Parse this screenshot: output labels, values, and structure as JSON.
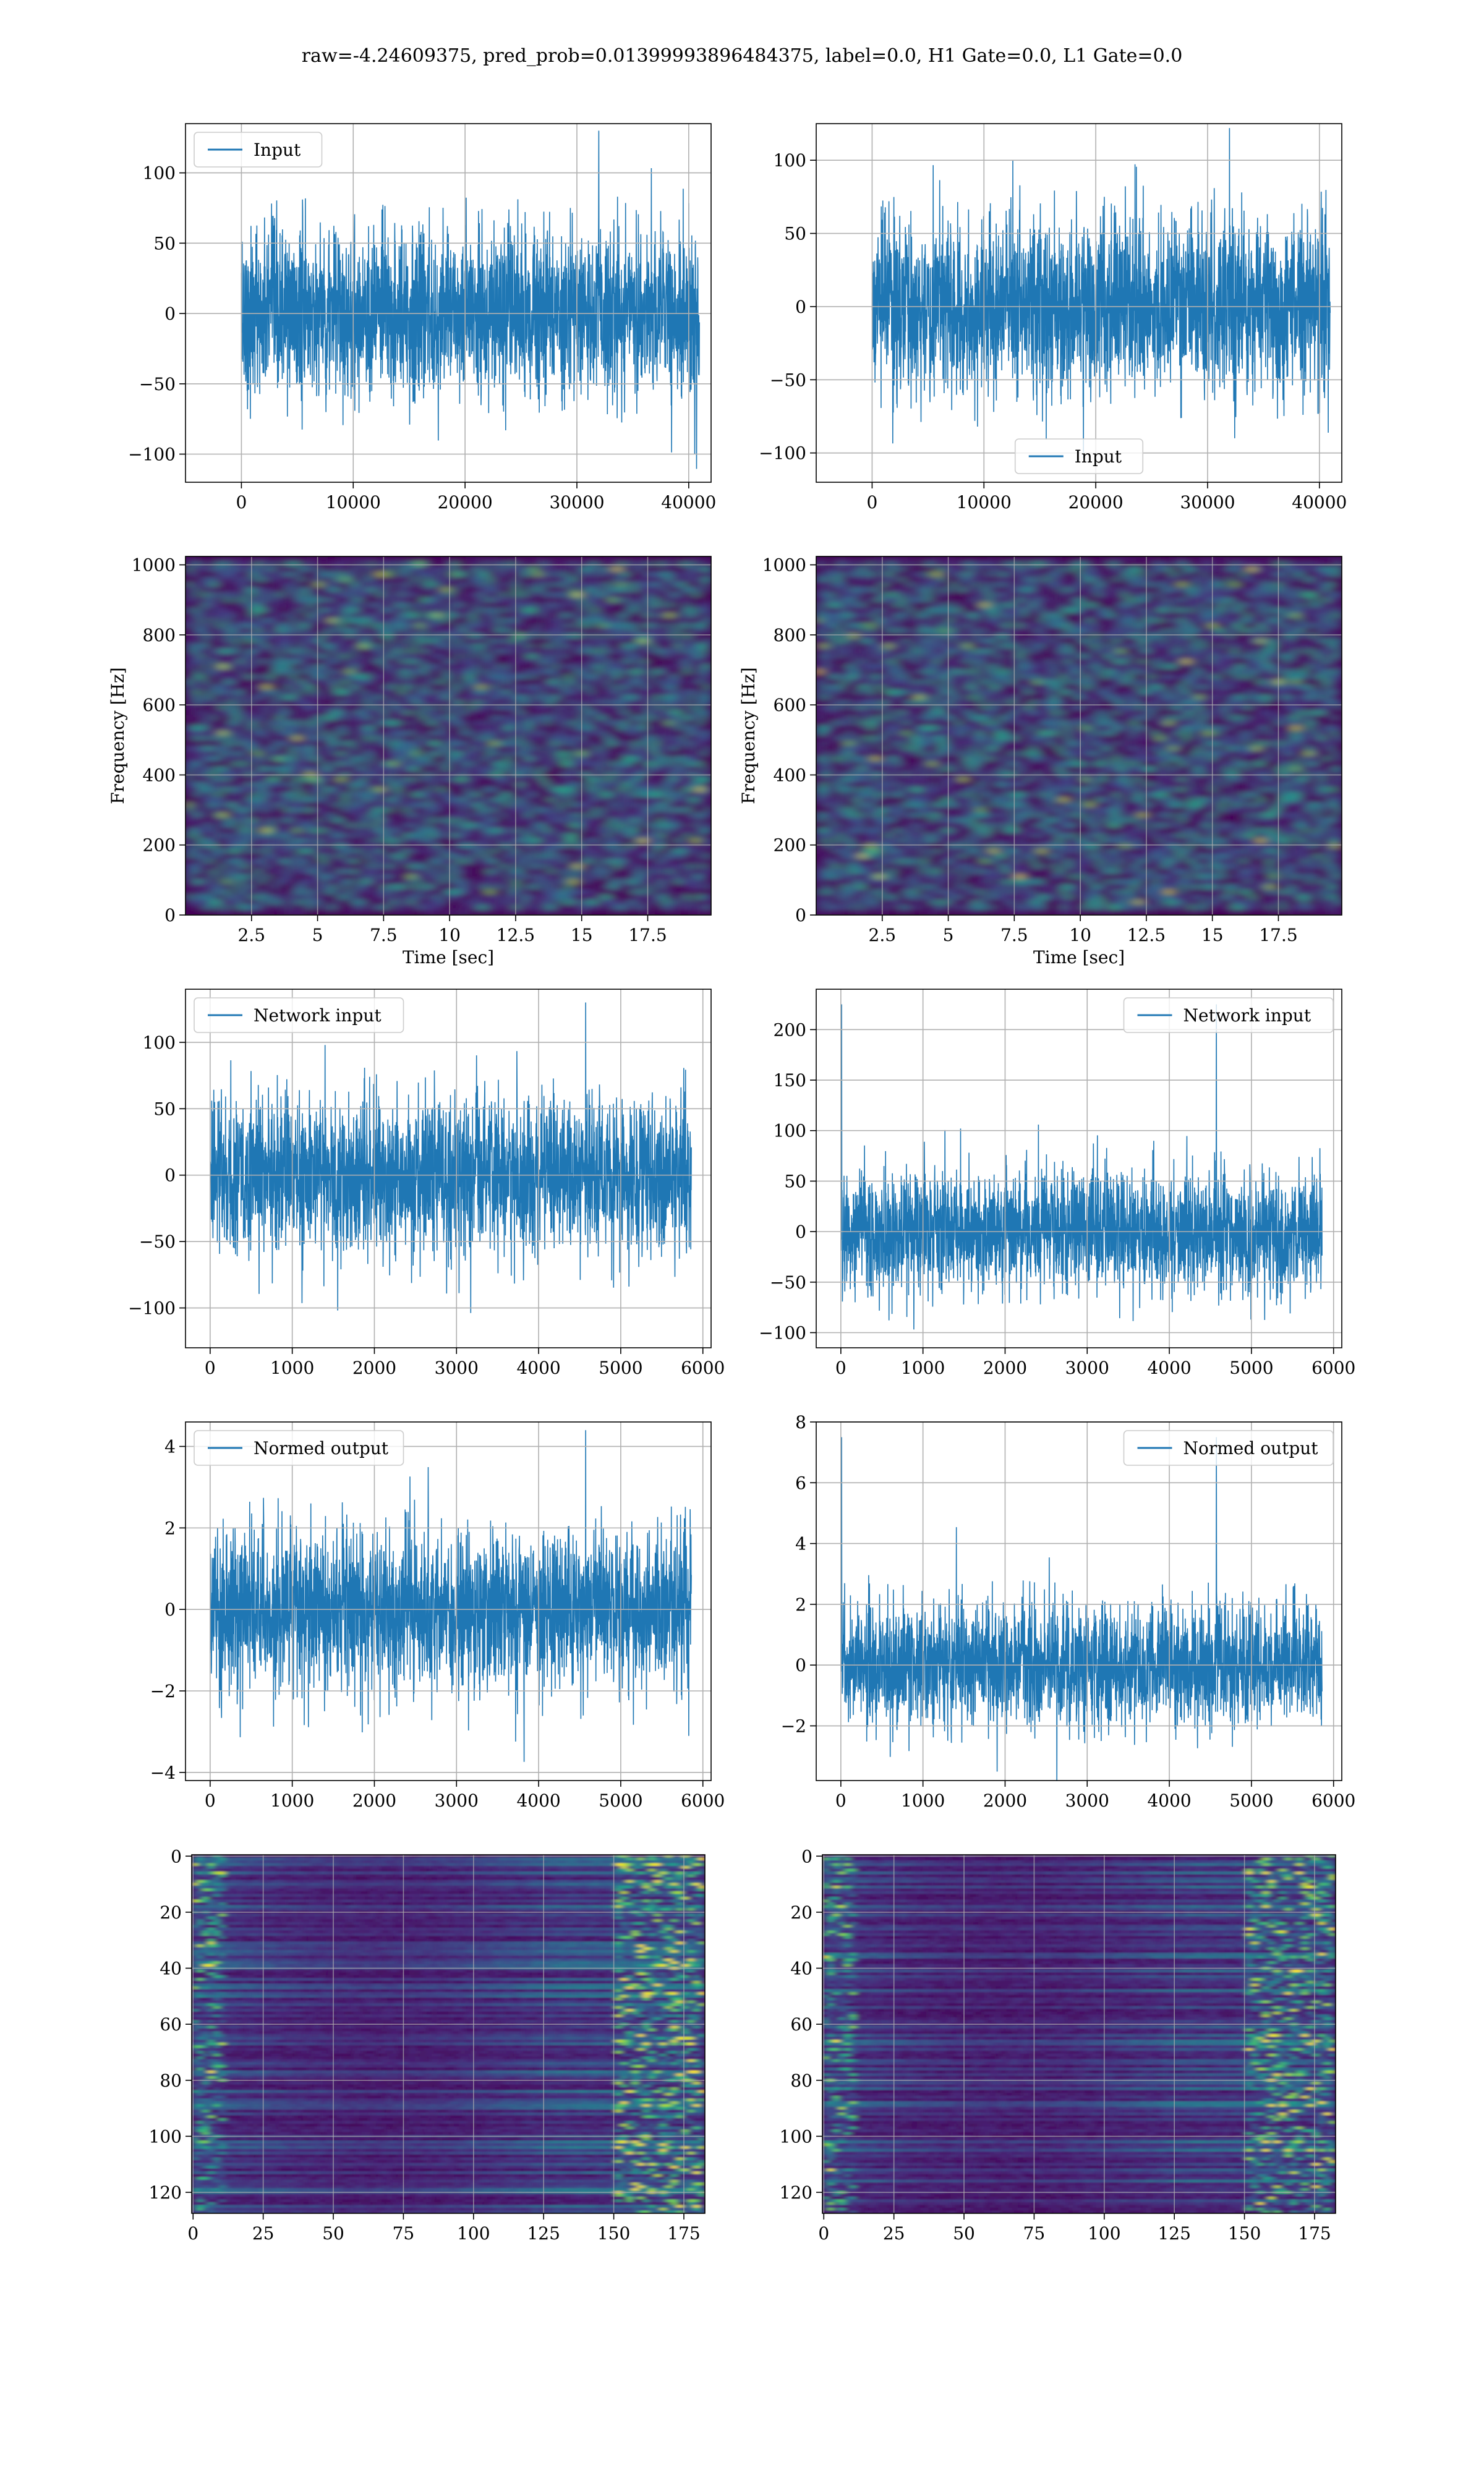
{
  "figure": {
    "title": "raw=-4.24609375, pred_prob=0.01399993896484375, label=0.0, H1 Gate=0.0, L1 Gate=0.0"
  },
  "colors": {
    "series": "#1f77b4",
    "grid": "#b0b0b0",
    "viridis": [
      "#440154",
      "#482878",
      "#3e4989",
      "#31688e",
      "#26828e",
      "#1f9e89",
      "#35b779",
      "#6ece58",
      "#b5de2b",
      "#fde725"
    ]
  },
  "chart_data": [
    {
      "id": "h1-input",
      "type": "line",
      "xlim": [
        -5000,
        42000
      ],
      "ylim": [
        -120,
        135
      ],
      "xticks": [
        0,
        10000,
        20000,
        30000,
        40000
      ],
      "yticks": [
        -100,
        -50,
        0,
        50,
        100
      ],
      "grid": true,
      "legend": "top-left",
      "series": [
        {
          "name": "Input",
          "x_range": [
            0,
            40959
          ],
          "n_points": 40960,
          "amplitude": 30,
          "peak": 130
        }
      ]
    },
    {
      "id": "l1-input",
      "type": "line",
      "xlim": [
        -5000,
        42000
      ],
      "ylim": [
        -120,
        125
      ],
      "xticks": [
        0,
        10000,
        20000,
        30000,
        40000
      ],
      "yticks": [
        -100,
        -50,
        0,
        50,
        100
      ],
      "grid": true,
      "legend": "bottom-center",
      "series": [
        {
          "name": "Input",
          "x_range": [
            0,
            40959
          ],
          "n_points": 40960,
          "amplitude": 30,
          "peak": 122
        }
      ]
    },
    {
      "id": "h1-spectrogram",
      "type": "heatmap",
      "xlim": [
        0,
        19.9
      ],
      "ylim": [
        0,
        1024
      ],
      "xticks": [
        2.5,
        5.0,
        7.5,
        10.0,
        12.5,
        15.0,
        17.5
      ],
      "yticks": [
        0,
        200,
        400,
        600,
        800,
        1000
      ],
      "xlabel": "Time [sec]",
      "ylabel": "Frequency [Hz]",
      "grid": true
    },
    {
      "id": "l1-spectrogram",
      "type": "heatmap",
      "xlim": [
        0,
        19.9
      ],
      "ylim": [
        0,
        1024
      ],
      "xticks": [
        2.5,
        5.0,
        7.5,
        10.0,
        12.5,
        15.0,
        17.5
      ],
      "yticks": [
        0,
        200,
        400,
        600,
        800,
        1000
      ],
      "xlabel": "Time [sec]",
      "ylabel": "Frequency [Hz]",
      "grid": true
    },
    {
      "id": "h1-network-input",
      "type": "line",
      "xlim": [
        -300,
        6100
      ],
      "ylim": [
        -130,
        140
      ],
      "xticks": [
        0,
        1000,
        2000,
        3000,
        4000,
        5000,
        6000
      ],
      "yticks": [
        -100,
        -50,
        0,
        50,
        100
      ],
      "grid": true,
      "legend": "top-left",
      "series": [
        {
          "name": "Network input",
          "x_range": [
            0,
            5860
          ],
          "n_points": 5861,
          "amplitude": 30,
          "peak": 130
        }
      ]
    },
    {
      "id": "l1-network-input",
      "type": "line",
      "xlim": [
        -300,
        6100
      ],
      "ylim": [
        -115,
        240
      ],
      "xticks": [
        0,
        1000,
        2000,
        3000,
        4000,
        5000,
        6000
      ],
      "yticks": [
        -100,
        -50,
        0,
        50,
        100,
        150,
        200
      ],
      "grid": true,
      "legend": "top-right",
      "series": [
        {
          "name": "Network input",
          "x_range": [
            0,
            5860
          ],
          "n_points": 5861,
          "amplitude": 30,
          "peak": 225
        }
      ]
    },
    {
      "id": "h1-normed-output",
      "type": "line",
      "xlim": [
        -300,
        6100
      ],
      "ylim": [
        -4.2,
        4.6
      ],
      "xticks": [
        0,
        1000,
        2000,
        3000,
        4000,
        5000,
        6000
      ],
      "yticks": [
        -4,
        -2,
        0,
        2,
        4
      ],
      "grid": true,
      "legend": "top-left",
      "series": [
        {
          "name": "Normed output",
          "x_range": [
            0,
            5860
          ],
          "n_points": 5861,
          "amplitude": 1,
          "peak": 4.4
        }
      ]
    },
    {
      "id": "l1-normed-output",
      "type": "line",
      "xlim": [
        -300,
        6100
      ],
      "ylim": [
        -3.8,
        8.0
      ],
      "xticks": [
        0,
        1000,
        2000,
        3000,
        4000,
        5000,
        6000
      ],
      "yticks": [
        -2,
        0,
        2,
        4,
        6,
        8
      ],
      "grid": true,
      "legend": "top-right",
      "series": [
        {
          "name": "Normed output",
          "x_range": [
            0,
            5860
          ],
          "n_points": 5861,
          "amplitude": 1,
          "peak": 7.5
        }
      ]
    },
    {
      "id": "h1-feature-map",
      "type": "heatmap",
      "xlim": [
        -0.5,
        182.5
      ],
      "ylim": [
        127.5,
        -0.5
      ],
      "xticks": [
        0,
        25,
        50,
        75,
        100,
        125,
        150,
        175
      ],
      "yticks": [
        0,
        20,
        40,
        60,
        80,
        100,
        120
      ],
      "rows": 128,
      "cols": 183,
      "grid": true
    },
    {
      "id": "l1-feature-map",
      "type": "heatmap",
      "xlim": [
        -0.5,
        182.5
      ],
      "ylim": [
        127.5,
        -0.5
      ],
      "xticks": [
        0,
        25,
        50,
        75,
        100,
        125,
        150,
        175
      ],
      "yticks": [
        0,
        20,
        40,
        60,
        80,
        100,
        120
      ],
      "rows": 128,
      "cols": 183,
      "grid": true
    }
  ]
}
